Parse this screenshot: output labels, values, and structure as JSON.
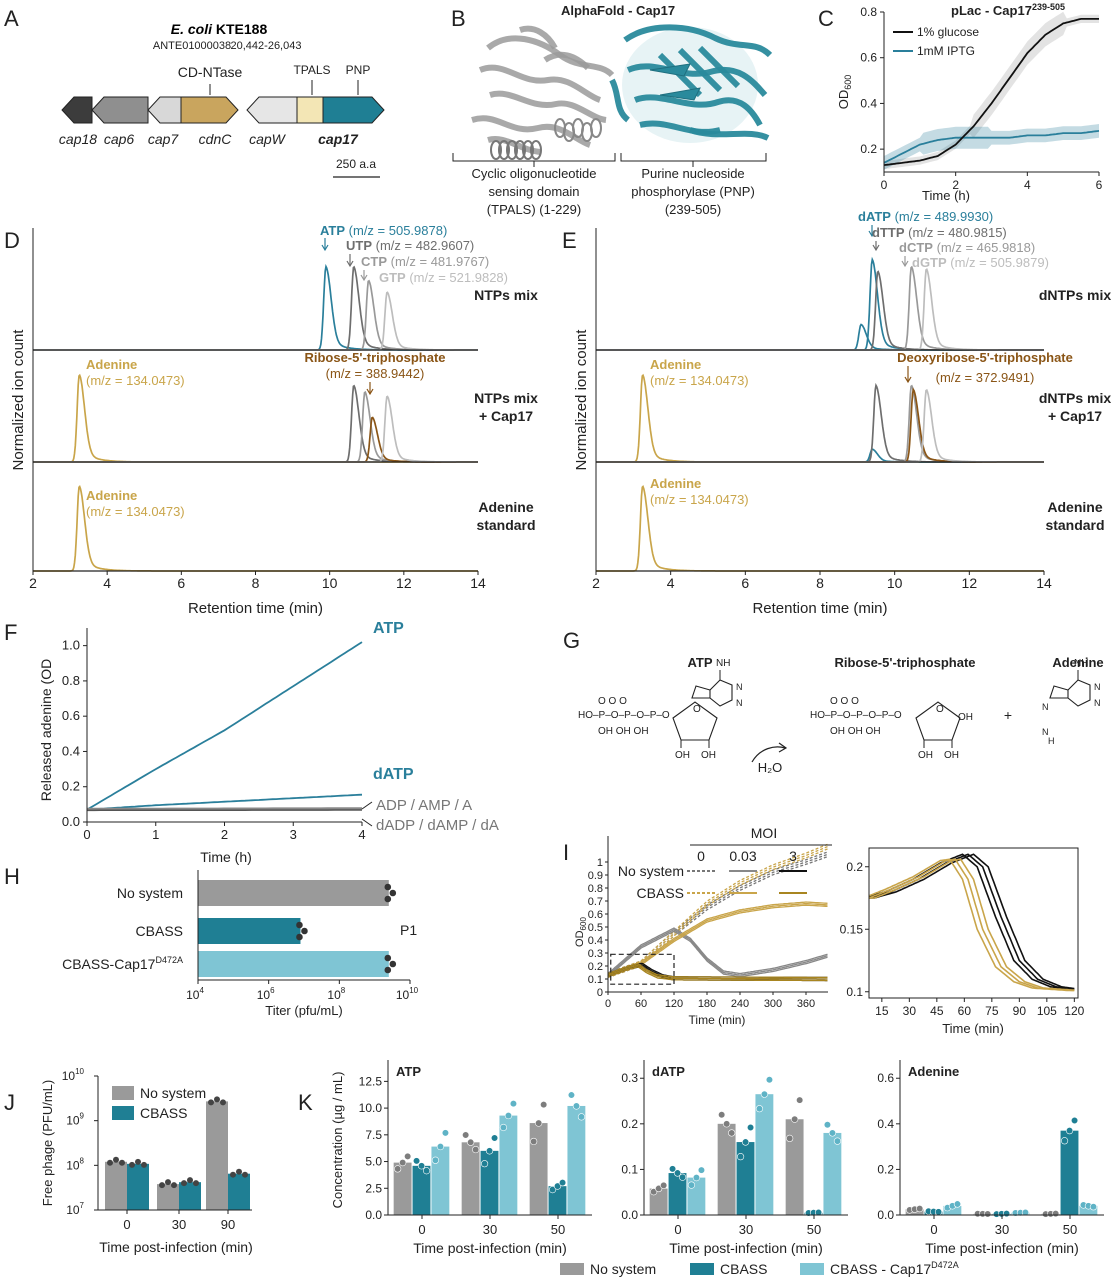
{
  "colors": {
    "teal": "#2a7f9b",
    "dark_teal": "#1d7a8c",
    "light_teal": "#7fc5d4",
    "gold": "#c9a54a",
    "brown": "#8a5516",
    "gray": "#999999",
    "dgray": "#6e6e6e",
    "lgray": "#bdbdbd",
    "black": "#222222"
  },
  "panel_letters": [
    "A",
    "B",
    "C",
    "D",
    "E",
    "F",
    "G",
    "H",
    "I",
    "J",
    "K"
  ],
  "panel_a": {
    "organism": "E. coli",
    "strain": " KTE188",
    "accession": "ANTE01000038",
    "coords": "20,442-26,043",
    "gene_labels": [
      "cap18",
      "cap6",
      "cap7",
      "cdnC",
      "capW",
      "cap17"
    ],
    "domain_labels": [
      "CD-NTase",
      "TPALS",
      "PNP"
    ],
    "scale_label": "250 a.a"
  },
  "panel_b": {
    "title": "AlphaFold - Cap17",
    "left_caption": [
      "Cyclic oligonucleotide",
      "sensing domain",
      "(TPALS) (1-229)"
    ],
    "right_caption": [
      "Purine nucleoside",
      "phosphorylase (PNP)",
      "(239-505)"
    ]
  },
  "panel_g": {
    "labels": [
      "ATP",
      "Ribose-5'-triphosphate",
      "Adenine"
    ],
    "reagent": "H₂O",
    "plus": "+"
  },
  "chart_data": [
    {
      "id": "C",
      "type": "line",
      "title": "pLac - Cap17",
      "title_sup": "239-505",
      "xlabel": "Time (h)",
      "ylabel": "OD600",
      "xlim": [
        0,
        6
      ],
      "ylim": [
        0.1,
        0.8
      ],
      "xticks": [
        "0",
        "2",
        "4",
        "6"
      ],
      "yticks": [
        "0.2",
        "0.4",
        "0.6",
        "0.8"
      ],
      "series": [
        {
          "name": "1% glucose",
          "x": [
            0,
            0.5,
            1,
            1.5,
            2,
            2.5,
            3,
            3.5,
            4,
            4.5,
            5,
            5.5,
            6
          ],
          "y": [
            0.13,
            0.14,
            0.15,
            0.17,
            0.22,
            0.3,
            0.4,
            0.51,
            0.62,
            0.7,
            0.75,
            0.77,
            0.77
          ]
        },
        {
          "name": "1mM IPTG",
          "x": [
            0,
            0.5,
            1,
            1.5,
            2,
            2.5,
            3,
            3.5,
            4,
            4.5,
            5,
            5.5,
            6
          ],
          "y": [
            0.14,
            0.18,
            0.22,
            0.24,
            0.25,
            0.25,
            0.25,
            0.25,
            0.26,
            0.26,
            0.27,
            0.27,
            0.28
          ]
        }
      ]
    },
    {
      "id": "D",
      "type": "line",
      "xlabel": "Retention time (min)",
      "ylabel": "Normalized ion count",
      "xlim": [
        2,
        14
      ],
      "xticks": [
        "2",
        "4",
        "6",
        "8",
        "10",
        "12",
        "14"
      ],
      "tracks": [
        {
          "label": [
            "NTPs mix"
          ],
          "peaks": [
            {
              "name": "ATP",
              "rt": 9.9,
              "h": 0.72,
              "color": "teal"
            },
            {
              "name": "UTP",
              "rt": 10.65,
              "h": 0.72,
              "color": "dgray"
            },
            {
              "name": "CTP",
              "rt": 11.05,
              "h": 0.6,
              "color": "gray"
            },
            {
              "name": "GTP",
              "rt": 11.55,
              "h": 0.5,
              "color": "lgray"
            }
          ]
        },
        {
          "label": [
            "NTPs mix",
            "+ Cap17"
          ],
          "peaks": [
            {
              "name": "Adenine",
              "rt": 3.25,
              "h": 0.82,
              "color": "gold"
            },
            {
              "name": "UTP",
              "rt": 10.65,
              "h": 0.72,
              "color": "dgray"
            },
            {
              "name": "CTP",
              "rt": 10.95,
              "h": 0.66,
              "color": "gray"
            },
            {
              "name": "Ribose-5'-triphosphate",
              "rt": 11.15,
              "h": 0.42,
              "color": "brown"
            },
            {
              "name": "GTP",
              "rt": 11.55,
              "h": 0.62,
              "color": "lgray"
            }
          ]
        },
        {
          "label": [
            "Adenine",
            "standard"
          ],
          "peaks": [
            {
              "name": "Adenine",
              "rt": 3.25,
              "h": 0.82,
              "color": "gold"
            }
          ]
        }
      ],
      "annotations": [
        {
          "name": "ATP",
          "mz": " (m/z = 505.9878)"
        },
        {
          "name": "UTP",
          "mz": " (m/z = 482.9607)"
        },
        {
          "name": "CTP",
          "mz": " (m/z = 481.9767)"
        },
        {
          "name": "GTP",
          "mz": " (m/z = 521.9828)"
        },
        {
          "name": "Ribose-5'-triphosphate",
          "mz": "(m/z = 388.9442)"
        },
        {
          "name": "Adenine",
          "mz": "(m/z = 134.0473)"
        }
      ]
    },
    {
      "id": "E",
      "type": "line",
      "xlabel": "Retention time (min)",
      "ylabel": "Normalized ion count",
      "xlim": [
        2,
        14
      ],
      "xticks": [
        "2",
        "4",
        "6",
        "8",
        "10",
        "12",
        "14"
      ],
      "tracks": [
        {
          "label": [
            "dNTPs mix"
          ],
          "peaks": [
            {
              "name": "dATP-minor",
              "rt": 9.1,
              "h": 0.22,
              "color": "teal"
            },
            {
              "name": "dATP",
              "rt": 9.4,
              "h": 0.78,
              "color": "teal"
            },
            {
              "name": "dTTP",
              "rt": 9.55,
              "h": 0.68,
              "color": "dgray"
            },
            {
              "name": "dCTP",
              "rt": 10.45,
              "h": 0.72,
              "color": "gray"
            },
            {
              "name": "dGTP",
              "rt": 10.85,
              "h": 0.7,
              "color": "lgray"
            }
          ]
        },
        {
          "label": [
            "dNTPs mix",
            "+ Cap17"
          ],
          "peaks": [
            {
              "name": "Adenine",
              "rt": 3.25,
              "h": 0.82,
              "color": "gold"
            },
            {
              "name": "dATP-minor",
              "rt": 9.4,
              "h": 0.12,
              "color": "teal"
            },
            {
              "name": "dTTP",
              "rt": 9.5,
              "h": 0.72,
              "color": "dgray"
            },
            {
              "name": "dCTP",
              "rt": 10.45,
              "h": 0.72,
              "color": "gray"
            },
            {
              "name": "Deoxyribose-5'-triphosphate",
              "rt": 10.5,
              "h": 0.68,
              "color": "brown"
            },
            {
              "name": "dGTP",
              "rt": 10.85,
              "h": 0.68,
              "color": "lgray"
            }
          ]
        },
        {
          "label": [
            "Adenine",
            "standard"
          ],
          "peaks": [
            {
              "name": "Adenine",
              "rt": 3.25,
              "h": 0.82,
              "color": "gold"
            }
          ]
        }
      ],
      "annotations": [
        {
          "name": "dATP",
          "mz": " (m/z = 489.9930)"
        },
        {
          "name": "dTTP",
          "mz": " (m/z = 480.9815)"
        },
        {
          "name": "dCTP",
          "mz": " (m/z = 465.9818)"
        },
        {
          "name": "dGTP",
          "mz": " (m/z = 505.9879)"
        },
        {
          "name": "Deoxyribose-5'-triphosphate",
          "mz": "(m/z = 372.9491)"
        },
        {
          "name": "Adenine",
          "mz": "(m/z = 134.0473)"
        }
      ]
    },
    {
      "id": "F",
      "type": "line",
      "xlabel": "Time (h)",
      "ylabel": "Released adenine (OD500)",
      "xlim": [
        0,
        4
      ],
      "ylim": [
        0,
        1.1
      ],
      "xticks": [
        "0",
        "1",
        "2",
        "3",
        "4"
      ],
      "yticks": [
        "0.0",
        "0.2",
        "0.4",
        "0.6",
        "0.8",
        "1.0"
      ],
      "series": [
        {
          "name": "ATP",
          "x": [
            0,
            1,
            2,
            3,
            4
          ],
          "y": [
            0.07,
            0.3,
            0.52,
            0.77,
            1.02
          ]
        },
        {
          "name": "dATP",
          "x": [
            0,
            1,
            2,
            3,
            4
          ],
          "y": [
            0.07,
            0.095,
            0.115,
            0.135,
            0.155
          ]
        },
        {
          "name": "ADP / AMP / A",
          "x": [
            0,
            4
          ],
          "y": [
            0.072,
            0.075
          ]
        },
        {
          "name": "dADP / dAMP / dA",
          "x": [
            0,
            4
          ],
          "y": [
            0.066,
            0.068
          ]
        }
      ]
    },
    {
      "id": "H",
      "type": "bar",
      "xlabel": "Titer (pfu/mL)",
      "xscale": "log",
      "xlim_log10": [
        4,
        10
      ],
      "xticks": [
        "10",
        "10",
        "10",
        "10"
      ],
      "xticks_sup": [
        "4",
        "6",
        "8",
        "10"
      ],
      "categories": [
        "No system",
        "CBASS",
        "CBASS-Cap17"
      ],
      "category_sup": [
        "",
        "",
        "D472A"
      ],
      "values_log10": [
        9.4,
        6.9,
        9.4
      ],
      "annotation": "P1"
    },
    {
      "id": "I-left",
      "type": "line",
      "xlabel": "Time (min)",
      "ylabel": "OD600",
      "xlim": [
        0,
        400
      ],
      "ylim": [
        0,
        1.2
      ],
      "xticks": [
        "0",
        "60",
        "120",
        "180",
        "240",
        "300",
        "360"
      ],
      "yticks": [
        "0",
        "0.1",
        "0.2",
        "0.3",
        "0.4",
        "0.5",
        "0.6",
        "0.7",
        "0.8",
        "0.9",
        "1"
      ],
      "legend": {
        "title": "MOI",
        "moi": [
          "0",
          "0.03",
          "3"
        ],
        "rows": [
          "No system",
          "CBASS"
        ]
      },
      "series": [
        {
          "name": "No system MOI 0",
          "x": [
            0,
            60,
            120,
            180,
            240,
            300,
            360,
            400
          ],
          "y": [
            0.13,
            0.22,
            0.45,
            0.65,
            0.8,
            0.92,
            1.0,
            1.06
          ]
        },
        {
          "name": "CBASS MOI 0",
          "x": [
            0,
            60,
            120,
            180,
            240,
            300,
            360,
            400
          ],
          "y": [
            0.13,
            0.22,
            0.45,
            0.68,
            0.84,
            0.96,
            1.05,
            1.12
          ]
        },
        {
          "name": "No system MOI 0.03",
          "x": [
            0,
            60,
            120,
            150,
            180,
            210,
            240,
            300,
            360,
            400
          ],
          "y": [
            0.13,
            0.35,
            0.48,
            0.4,
            0.25,
            0.15,
            0.13,
            0.17,
            0.23,
            0.28
          ]
        },
        {
          "name": "CBASS MOI 0.03",
          "x": [
            0,
            60,
            120,
            180,
            240,
            300,
            360,
            400
          ],
          "y": [
            0.13,
            0.22,
            0.4,
            0.55,
            0.62,
            0.66,
            0.68,
            0.67
          ]
        },
        {
          "name": "No system MOI 3",
          "x": [
            0,
            40,
            62,
            80,
            100,
            120,
            400
          ],
          "y": [
            0.13,
            0.19,
            0.21,
            0.16,
            0.12,
            0.105,
            0.1
          ]
        },
        {
          "name": "CBASS MOI 3",
          "x": [
            0,
            40,
            55,
            70,
            90,
            120,
            400
          ],
          "y": [
            0.13,
            0.19,
            0.205,
            0.16,
            0.12,
            0.105,
            0.1
          ]
        }
      ]
    },
    {
      "id": "I-right",
      "type": "line",
      "xlabel": "Time (min)",
      "xlim": [
        8,
        122
      ],
      "ylim": [
        0.095,
        0.215
      ],
      "xticks": [
        "15",
        "30",
        "45",
        "60",
        "75",
        "90",
        "105",
        "120"
      ],
      "yticks": [
        "0.1",
        "0.15",
        "0.2"
      ],
      "series": [
        {
          "name": "No system MOI 3",
          "x": [
            8,
            20,
            35,
            50,
            62,
            70,
            80,
            90,
            100,
            110,
            120
          ],
          "y": [
            0.175,
            0.18,
            0.19,
            0.203,
            0.21,
            0.2,
            0.16,
            0.125,
            0.11,
            0.104,
            0.102
          ]
        },
        {
          "name": "CBASS MOI 3",
          "x": [
            8,
            20,
            35,
            50,
            55,
            62,
            70,
            80,
            90,
            100,
            120
          ],
          "y": [
            0.175,
            0.182,
            0.192,
            0.205,
            0.206,
            0.19,
            0.15,
            0.12,
            0.108,
            0.103,
            0.101
          ]
        }
      ]
    },
    {
      "id": "J",
      "type": "bar",
      "xlabel": "Time post-infection (min)",
      "ylabel": "Free phage (PFU/mL)",
      "yscale": "log",
      "ylim_log10": [
        7,
        10
      ],
      "yticks": [
        "10",
        "10",
        "10",
        "10"
      ],
      "yticks_sup": [
        "7",
        "8",
        "9",
        "10"
      ],
      "categories": [
        "0",
        "30",
        "90"
      ],
      "series": [
        {
          "name": "No system",
          "values": [
            120000000.0,
            38000000.0,
            2700000000.0
          ]
        },
        {
          "name": "CBASS",
          "values": [
            108000000.0,
            42000000.0,
            65000000.0
          ]
        }
      ]
    },
    {
      "id": "K-ATP",
      "type": "bar",
      "title": "ATP",
      "xlabel": "Time post-infection (min)",
      "ylabel": "Concentration (µg / mL)",
      "categories": [
        "0",
        "30",
        "50"
      ],
      "ylim": [
        0,
        14.5
      ],
      "yticks": [
        "0.0",
        "2.5",
        "5.0",
        "7.5",
        "10.0",
        "12.5"
      ],
      "series": [
        {
          "name": "No system",
          "values": [
            4.9,
            6.8,
            8.6
          ]
        },
        {
          "name": "CBASS",
          "values": [
            4.6,
            6.0,
            2.7
          ]
        },
        {
          "name": "CBASS - Cap17 D472A",
          "values": [
            6.4,
            9.3,
            10.2
          ]
        }
      ]
    },
    {
      "id": "K-dATP",
      "type": "bar",
      "title": "dATP",
      "xlabel": "Time post-infection (min)",
      "categories": [
        "0",
        "30",
        "50"
      ],
      "ylim": [
        0,
        0.34
      ],
      "yticks": [
        "0.0",
        "0.1",
        "0.2",
        "0.3"
      ],
      "series": [
        {
          "name": "No system",
          "values": [
            0.058,
            0.2,
            0.21
          ]
        },
        {
          "name": "CBASS",
          "values": [
            0.092,
            0.16,
            0.005
          ]
        },
        {
          "name": "CBASS - Cap17 D472A",
          "values": [
            0.082,
            0.265,
            0.18
          ]
        }
      ]
    },
    {
      "id": "K-Adenine",
      "type": "bar",
      "title": "Adenine",
      "xlabel": "Time post-infection (min)",
      "categories": [
        "0",
        "30",
        "50"
      ],
      "ylim": [
        0,
        0.68
      ],
      "yticks": [
        "0.0",
        "0.2",
        "0.4",
        "0.6"
      ],
      "series": [
        {
          "name": "No system",
          "values": [
            0.025,
            0.005,
            0.005
          ]
        },
        {
          "name": "CBASS",
          "values": [
            0.015,
            0.005,
            0.37
          ]
        },
        {
          "name": "CBASS - Cap17 D472A",
          "values": [
            0.04,
            0.01,
            0.04
          ]
        }
      ],
      "legend": [
        "No system",
        "CBASS",
        "CBASS - Cap17"
      ],
      "legend_sup": [
        "",
        "",
        "D472A"
      ]
    }
  ]
}
